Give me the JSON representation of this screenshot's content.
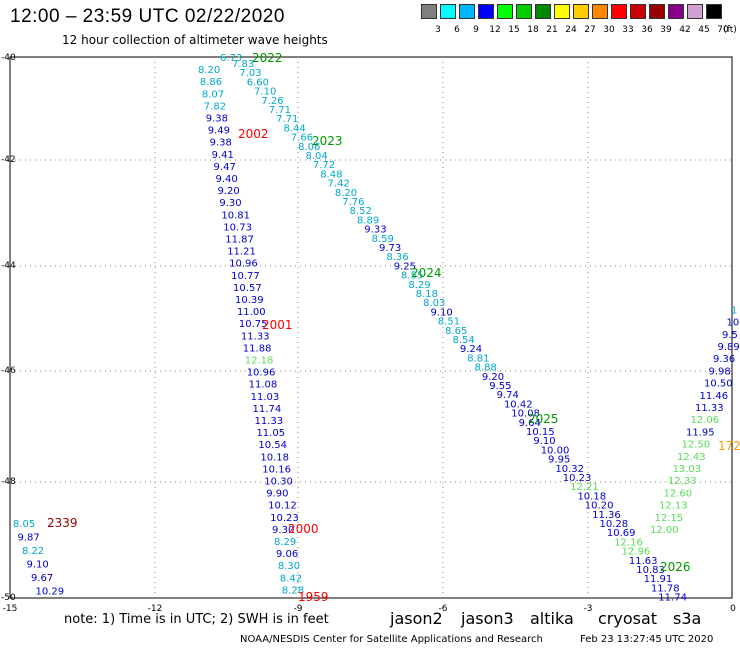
{
  "title": "12:00 – 23:59 UTC 02/22/2020",
  "subtitle": "12 hour collection of altimeter wave heights",
  "scale": {
    "unit": "(ft)",
    "ticks": [
      "3",
      "6",
      "9",
      "12",
      "15",
      "18",
      "21",
      "24",
      "27",
      "30",
      "33",
      "36",
      "39",
      "42",
      "45",
      "70"
    ],
    "colors": [
      "#7f7f7f",
      "#00ffff",
      "#00b7ff",
      "#0000ff",
      "#00ff00",
      "#00cc00",
      "#008800",
      "#ffff00",
      "#ffcc00",
      "#ff8800",
      "#ff0000",
      "#cc0000",
      "#990000",
      "#8b008b",
      "#d3a0d3",
      "#000000"
    ]
  },
  "axes": {
    "lat_labels": [
      "-40",
      "-42",
      "-44",
      "-46",
      "-48",
      "-50"
    ],
    "lon_labels": [
      "-15",
      "-12",
      "-9",
      "-6",
      "-3",
      "0"
    ]
  },
  "colors": {
    "jason2": "#0000cc",
    "jason3": "#009900",
    "altika": "#ff9900",
    "cryosat": "#ff0000",
    "s3a": "#990000",
    "cyan": "#00a8cc",
    "lightgreen": "#55dd55"
  },
  "passes": [
    "2022",
    "2023",
    "2024",
    "2025",
    "2026",
    "2002",
    "2001",
    "2000",
    "1959",
    "2339",
    "172"
  ],
  "tracks": {
    "track_2002_2000": [
      "6.73",
      "8.20",
      "8.86",
      "8.07",
      "7.82",
      "9.38",
      "9.49",
      "9.38",
      "9.41",
      "9.47",
      "9.40",
      "9.20",
      "9.30",
      "10.81",
      "10.73",
      "11.87",
      "11.21",
      "10.96",
      "10.77",
      "10.57",
      "10.39",
      "11.00",
      "10.75",
      "11.33",
      "11.88",
      "12.18",
      "10.96",
      "11.08",
      "11.03",
      "11.74",
      "11.33",
      "11.05",
      "10.54",
      "10.18",
      "10.16",
      "10.30",
      "9.90",
      "10.12",
      "10.23",
      "9.30",
      "8.29",
      "9.06",
      "8.30",
      "8.42",
      "8.28"
    ],
    "track_2022_2026": [
      "7.83",
      "7.03",
      "6.60",
      "7.10",
      "7.26",
      "7.71",
      "7.71",
      "8.44",
      "7.66",
      "8.06",
      "8.04",
      "7.72",
      "8.48",
      "7.42",
      "8.20",
      "7.76",
      "8.52",
      "8.89",
      "9.33",
      "8.59",
      "9.73",
      "8.36",
      "9.25",
      "8.55",
      "8.29",
      "8.18",
      "8.03",
      "9.10",
      "8.51",
      "8.65",
      "8.54",
      "9.24",
      "8.81",
      "8.88",
      "9.20",
      "9.55",
      "9.74",
      "10.42",
      "10.08",
      "9.64",
      "10.15",
      "9.10",
      "10.00",
      "9.95",
      "10.32",
      "10.23",
      "12.21",
      "10.18",
      "10.20",
      "11.36",
      "10.28",
      "10.69",
      "12.16",
      "12.96",
      "11.63",
      "10.83",
      "11.91",
      "11.78",
      "11.74"
    ],
    "track_east": [
      "12.00",
      "12.15",
      "12.13",
      "12.60",
      "12.33",
      "13.03",
      "12.43",
      "12.50",
      "11.95",
      "12.06",
      "11.33",
      "11.46",
      "10.50",
      "9.98",
      "9.36",
      "9.89",
      "9.5",
      "10",
      "1"
    ],
    "track_2339": [
      "8.05",
      "9.87",
      "8.22",
      "9.10",
      "9.67",
      "10.29"
    ]
  },
  "footer": {
    "note": "note:  1) Time is in UTC;  2) SWH is in feet",
    "missions": [
      "jason2",
      "jason3",
      "altika",
      "cryosat",
      "s3a"
    ],
    "credit": "NOAA/NESDIS Center for Satellite Applications and Research",
    "timestamp": "Feb 23 13:27:45 UTC 2020"
  }
}
